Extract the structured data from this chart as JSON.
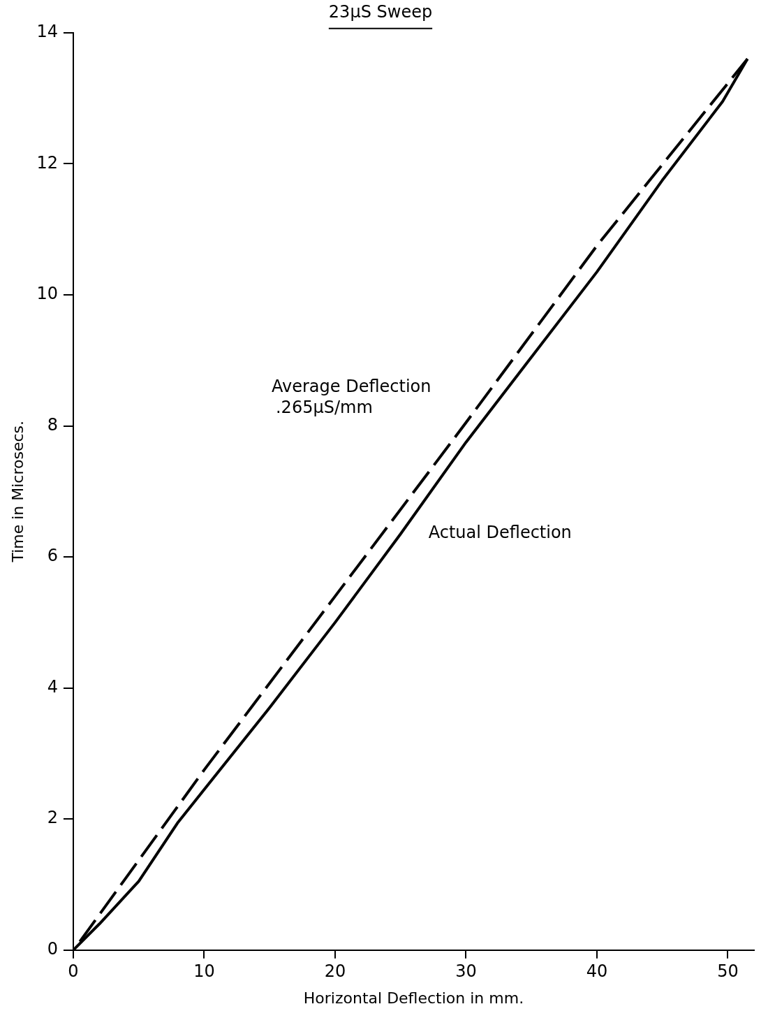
{
  "chart_data": {
    "type": "line",
    "title": "23µS Sweep",
    "xlabel": "Horizontal Deflection in mm.",
    "ylabel": "Time in Microsecs.",
    "xlim": [
      0,
      52
    ],
    "xticks": [
      0,
      10,
      20,
      30,
      40,
      50
    ],
    "ylim": [
      0,
      14
    ],
    "yticks": [
      0,
      2,
      4,
      6,
      8,
      10,
      12,
      14
    ],
    "grid": false,
    "legend": false,
    "marker": "none",
    "series": [
      {
        "name": "Average Deflection",
        "color": "#000000",
        "line_style": "dashed",
        "x": [
          0.5,
          10,
          20,
          30,
          40,
          51.5
        ],
        "values": [
          0.13,
          2.75,
          5.4,
          8.05,
          10.75,
          13.6
        ]
      },
      {
        "name": "Actual Deflection",
        "color": "#000000",
        "line_style": "solid",
        "x": [
          0,
          2,
          5,
          8,
          10,
          15,
          20,
          25,
          30,
          35,
          40,
          45,
          49.6,
          51.5
        ],
        "values": [
          0,
          0.4,
          1.05,
          1.95,
          2.45,
          3.7,
          5.0,
          6.35,
          7.75,
          9.05,
          10.35,
          11.75,
          12.95,
          13.6
        ]
      }
    ],
    "annotations": [
      ".265µS/mm"
    ]
  }
}
